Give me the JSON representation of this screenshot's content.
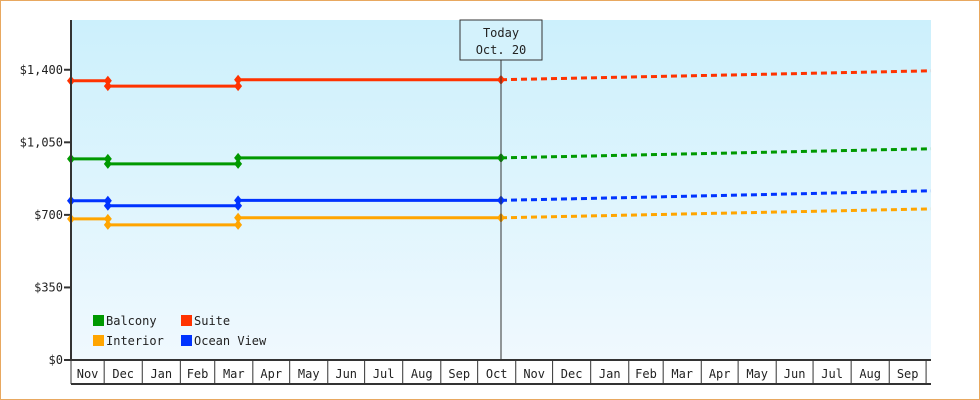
{
  "chart_data": {
    "type": "line",
    "title": "",
    "xlabel": "",
    "ylabel": "",
    "ylim": [
      0,
      1640
    ],
    "y_ticks": [
      "$0",
      "$350",
      "$700",
      "$1,050",
      "$1,400"
    ],
    "y_tick_values": [
      0,
      350,
      700,
      1050,
      1400
    ],
    "x_tick_labels": [
      "Nov",
      "Dec",
      "Jan",
      "Feb",
      "Mar",
      "Apr",
      "May",
      "Jun",
      "Jul",
      "Aug",
      "Sep",
      "Oct",
      "Nov",
      "Dec",
      "Jan",
      "Feb",
      "Mar",
      "Apr",
      "May",
      "Jun",
      "Jul",
      "Aug",
      "Sep"
    ],
    "x_start": "Nov 4",
    "x_end": "Oct 5",
    "grid": false,
    "legend": {
      "placement": "bottom-left"
    },
    "today_marker": {
      "line1": "Today",
      "line2": "Oct. 20",
      "date": "Oct 20"
    },
    "series": [
      {
        "name": "Balcony",
        "color": "#009900",
        "history": [
          {
            "date": "Nov 4",
            "price": 970
          },
          {
            "date": "Dec 4",
            "price": 970
          },
          {
            "date": "Dec 4",
            "price": 946
          },
          {
            "date": "Mar 20",
            "price": 946
          },
          {
            "date": "Mar 20",
            "price": 975
          },
          {
            "date": "Oct 20",
            "price": 975
          }
        ],
        "forecast": [
          {
            "date": "Oct 20",
            "price": 975
          },
          {
            "date": "Oct 5",
            "price": 1019
          }
        ]
      },
      {
        "name": "Suite",
        "color": "#ff3300",
        "history": [
          {
            "date": "Nov 4",
            "price": 1347
          },
          {
            "date": "Dec 4",
            "price": 1347
          },
          {
            "date": "Dec 4",
            "price": 1321
          },
          {
            "date": "Mar 20",
            "price": 1321
          },
          {
            "date": "Mar 20",
            "price": 1352
          },
          {
            "date": "Oct 20",
            "price": 1352
          }
        ],
        "forecast": [
          {
            "date": "Oct 20",
            "price": 1352
          },
          {
            "date": "Oct 5",
            "price": 1395
          }
        ]
      },
      {
        "name": "Interior",
        "color": "#ffa500",
        "history": [
          {
            "date": "Nov 4",
            "price": 681
          },
          {
            "date": "Dec 4",
            "price": 681
          },
          {
            "date": "Dec 4",
            "price": 652
          },
          {
            "date": "Mar 20",
            "price": 652
          },
          {
            "date": "Mar 20",
            "price": 686
          },
          {
            "date": "Oct 20",
            "price": 686
          }
        ],
        "forecast": [
          {
            "date": "Oct 20",
            "price": 686
          },
          {
            "date": "Oct 5",
            "price": 729
          }
        ]
      },
      {
        "name": "Ocean View",
        "color": "#0033ff",
        "history": [
          {
            "date": "Nov 4",
            "price": 768
          },
          {
            "date": "Dec 4",
            "price": 768
          },
          {
            "date": "Dec 4",
            "price": 744
          },
          {
            "date": "Mar 20",
            "price": 744
          },
          {
            "date": "Mar 20",
            "price": 770
          },
          {
            "date": "Oct 20",
            "price": 770
          }
        ],
        "forecast": [
          {
            "date": "Oct 20",
            "price": 770
          },
          {
            "date": "Oct 5",
            "price": 816
          }
        ]
      }
    ]
  }
}
